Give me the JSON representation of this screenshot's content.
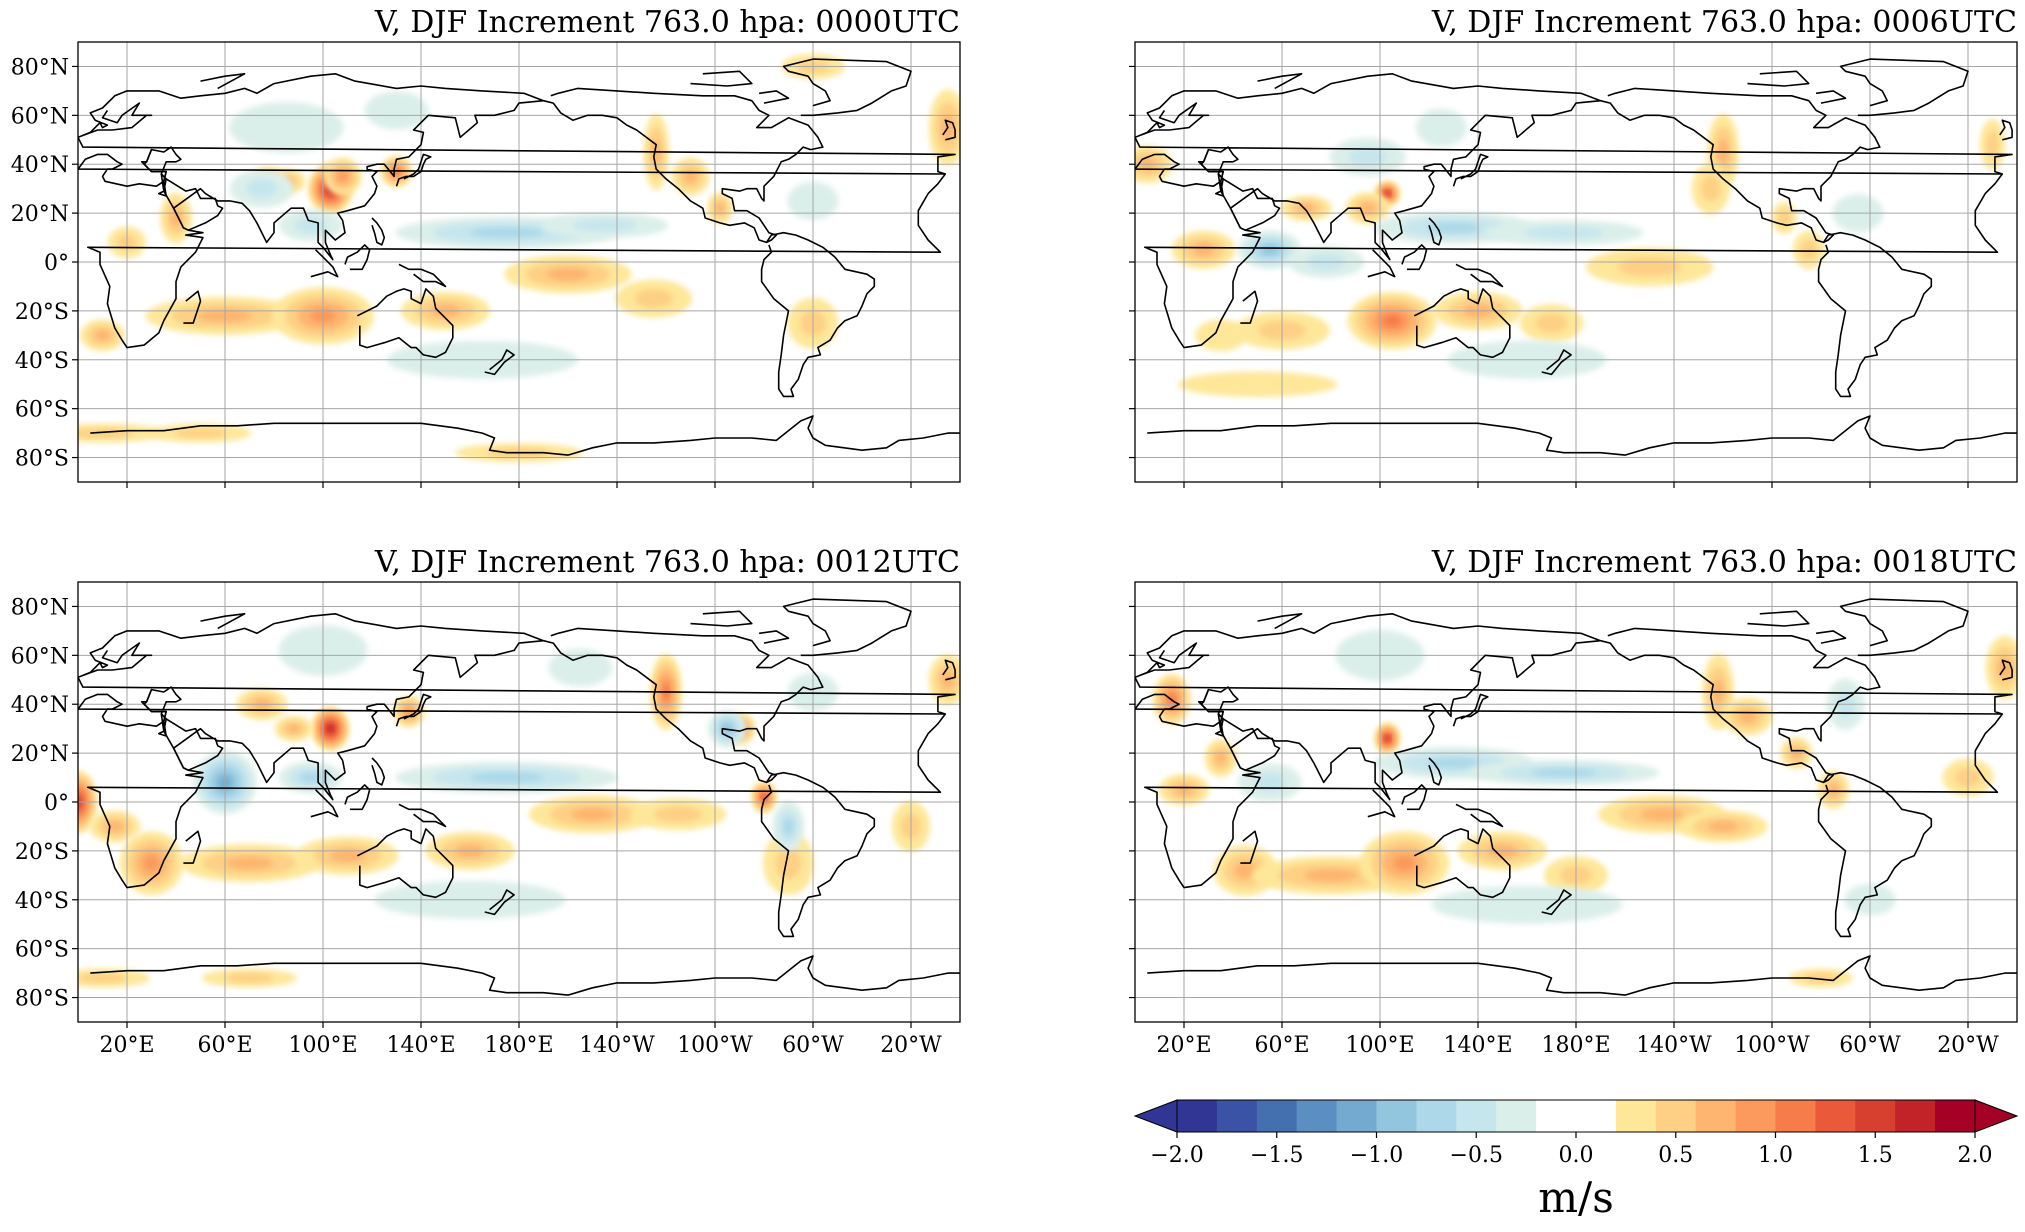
{
  "figure": {
    "panels": [
      {
        "title": "V, DJF Increment 763.0 hpa: 0000UTC",
        "show_lat_labels": true,
        "show_lon_labels": false
      },
      {
        "title": "V, DJF Increment 763.0 hpa: 0006UTC",
        "show_lat_labels": false,
        "show_lon_labels": false
      },
      {
        "title": "V, DJF Increment 763.0 hpa: 0012UTC",
        "show_lat_labels": true,
        "show_lon_labels": true
      },
      {
        "title": "V, DJF Increment 763.0 hpa: 0018UTC",
        "show_lat_labels": false,
        "show_lon_labels": true
      }
    ],
    "lat_ticks": [
      {
        "lat": 80,
        "label": "80°N"
      },
      {
        "lat": 60,
        "label": "60°N"
      },
      {
        "lat": 40,
        "label": "40°N"
      },
      {
        "lat": 20,
        "label": "20°N"
      },
      {
        "lat": 0,
        "label": "0°"
      },
      {
        "lat": -20,
        "label": "20°S"
      },
      {
        "lat": -40,
        "label": "40°S"
      },
      {
        "lat": -60,
        "label": "60°S"
      },
      {
        "lat": -80,
        "label": "80°S"
      }
    ],
    "lon_ticks": [
      {
        "lon": 20,
        "label": "20°E"
      },
      {
        "lon": 60,
        "label": "60°E"
      },
      {
        "lon": 100,
        "label": "100°E"
      },
      {
        "lon": 140,
        "label": "140°E"
      },
      {
        "lon": 180,
        "label": "180°E"
      },
      {
        "lon": 220,
        "label": "140°W"
      },
      {
        "lon": 260,
        "label": "100°W"
      },
      {
        "lon": 300,
        "label": "60°W"
      },
      {
        "lon": 340,
        "label": "20°W"
      }
    ],
    "map_extent": {
      "lon_min": 0,
      "lon_max": 360,
      "lat_min": -90,
      "lat_max": 90
    },
    "colorbar": {
      "vmin": -2.0,
      "vmax": 2.0,
      "step": 0.2,
      "extend": "both",
      "tick_values": [
        -2.0,
        -1.5,
        -1.0,
        -0.5,
        0.0,
        0.5,
        1.0,
        1.5,
        2.0
      ],
      "tick_labels": [
        "−2.0",
        "−1.5",
        "−1.0",
        "−0.5",
        "0.0",
        "0.5",
        "1.0",
        "1.5",
        "2.0"
      ],
      "colors": [
        "#313695",
        "#3a53a4",
        "#4570b0",
        "#5b8fc1",
        "#75aad0",
        "#92c5de",
        "#acd8e9",
        "#c6e6ee",
        "#dbefea",
        "#ffffff",
        "#ffffff",
        "#fee799",
        "#fdd085",
        "#fdb570",
        "#fb9a5c",
        "#f67c4a",
        "#ea5a3a",
        "#d73f2f",
        "#c12328",
        "#a50026"
      ],
      "over_color": "#a50026",
      "under_color": "#313695",
      "label": "m/s"
    }
  }
}
